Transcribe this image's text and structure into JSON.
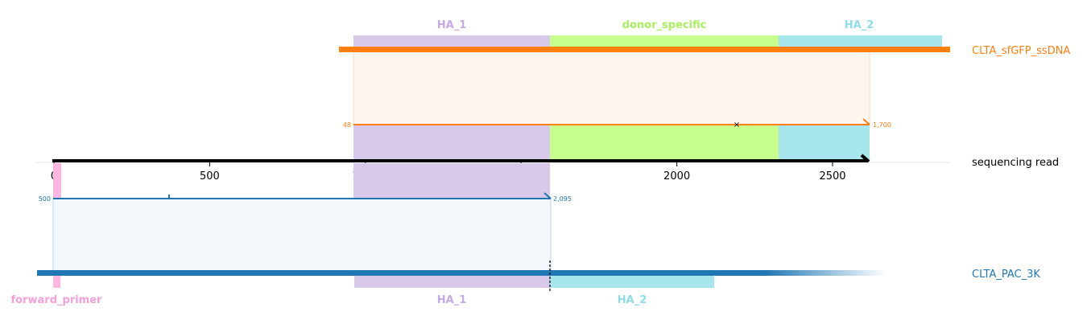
{
  "colors": {
    "ha1": "#d8c8ea",
    "ha1_text": "#c5a8e6",
    "donor": "#c8ff8c",
    "donor_text": "#a8f060",
    "ha2": "#a8e6ee",
    "ha2_text": "#8cdde8",
    "primer": "#ffb6e0",
    "primer_text": "#f5a0d8",
    "orange": "#ff7f0e",
    "blue": "#1f77b4",
    "black": "#000000"
  },
  "tracks": {
    "top": {
      "name": "CLTA_sfGFP_ssDNA"
    },
    "read": {
      "name": "sequencing read"
    },
    "bottom": {
      "name": "CLTA_PAC_3K"
    }
  },
  "features_top": [
    {
      "label": "HA_1",
      "color_key": "ha1"
    },
    {
      "label": "donor_specific",
      "color_key": "donor"
    },
    {
      "label": "HA_2",
      "color_key": "ha2"
    }
  ],
  "features_bottom": [
    {
      "label": "forward_primer",
      "color_key": "primer"
    },
    {
      "label": "HA_1",
      "color_key": "ha1"
    },
    {
      "label": "HA_2",
      "color_key": "ha2"
    }
  ],
  "axis": {
    "ticks": [
      {
        "value": 0,
        "label": "0"
      },
      {
        "value": 500,
        "label": "500"
      },
      {
        "value": 1000,
        "label": "1000"
      },
      {
        "value": 1500,
        "label": "1500"
      },
      {
        "value": 2000,
        "label": "2000"
      },
      {
        "value": 2500,
        "label": "2500"
      }
    ]
  },
  "alignments": {
    "top": {
      "start_label": "48",
      "end_label": "1,700"
    },
    "bottom": {
      "start_label": "500",
      "end_label": "2,095"
    }
  }
}
